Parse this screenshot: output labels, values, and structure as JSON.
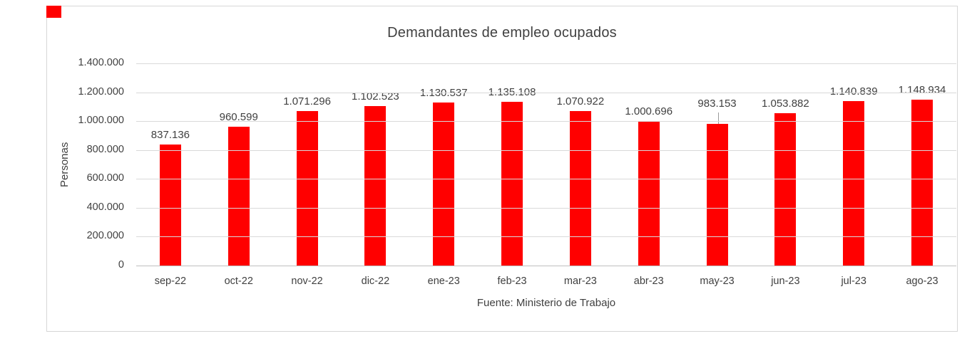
{
  "chart_data": {
    "type": "bar",
    "title": "Demandantes de empleo ocupados",
    "ylabel": "Personas",
    "xlabel": "Fuente: Ministerio de Trabajo",
    "categories": [
      "sep-22",
      "oct-22",
      "nov-22",
      "dic-22",
      "ene-23",
      "feb-23",
      "mar-23",
      "abr-23",
      "may-23",
      "jun-23",
      "jul-23",
      "ago-23"
    ],
    "values": [
      837136,
      960599,
      1071296,
      1102523,
      1130537,
      1135108,
      1070922,
      1000696,
      983153,
      1053882,
      1140839,
      1148934
    ],
    "value_labels": [
      "837.136",
      "960.599",
      "1.071.296",
      "1.102.523",
      "1.130.537",
      "1.135.108",
      "1.070.922",
      "1.000.696",
      "983.153",
      "1.053.882",
      "1.140.839",
      "1.148.934"
    ],
    "ylim": [
      0,
      1400000
    ],
    "ytick_labels": [
      "1.400.000",
      "1.200.000",
      "1.000.000",
      "800.000",
      "600.000",
      "400.000",
      "200.000",
      "0"
    ],
    "grid": true,
    "legend": "none",
    "bar_color": "#ff0000",
    "text_color": "#404040",
    "gridline_color": "#d9d9d9",
    "leader_line_category": "may-23",
    "corner_marker_color": "#ff0000"
  }
}
